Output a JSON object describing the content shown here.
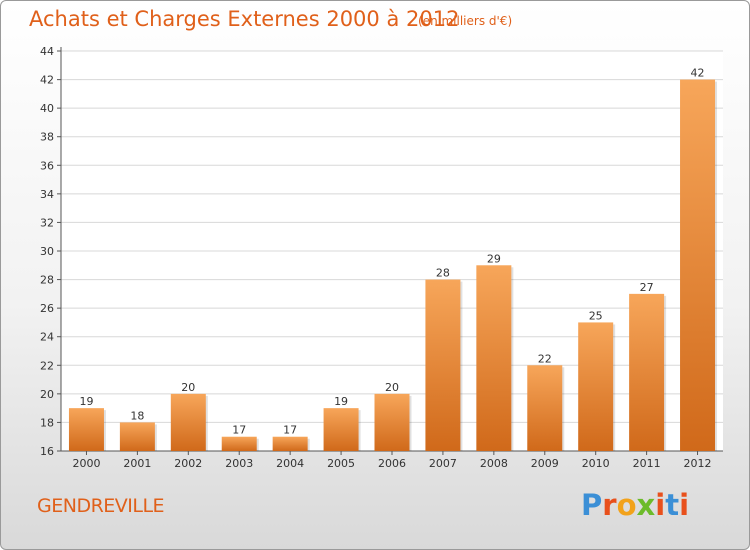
{
  "header": {
    "title": "Achats et Charges Externes 2000 à 2012",
    "subtitle": "(en milliers d'€)"
  },
  "footer": {
    "commune": "GENDREVILLE",
    "logo_text": "Proxiti",
    "logo_colors": [
      "#3b8fd6",
      "#e8501c",
      "#f2a21b",
      "#6cbb2a",
      "#e8501c",
      "#3b8fd6",
      "#e8501c"
    ]
  },
  "colors": {
    "bar_light": "#f7a65a",
    "bar_dark": "#d0691a",
    "text_accent": "#e0601a"
  },
  "chart_data": {
    "type": "bar",
    "categories": [
      "2000",
      "2001",
      "2002",
      "2003",
      "2004",
      "2005",
      "2006",
      "2007",
      "2008",
      "2009",
      "2010",
      "2011",
      "2012"
    ],
    "values": [
      19,
      18,
      20,
      17,
      17,
      19,
      20,
      28,
      29,
      22,
      25,
      27,
      42
    ],
    "ylim": [
      16,
      44
    ],
    "yticks": [
      16,
      18,
      20,
      22,
      24,
      26,
      28,
      30,
      32,
      34,
      36,
      38,
      40,
      42,
      44
    ],
    "grid": true,
    "data_labels": true
  }
}
